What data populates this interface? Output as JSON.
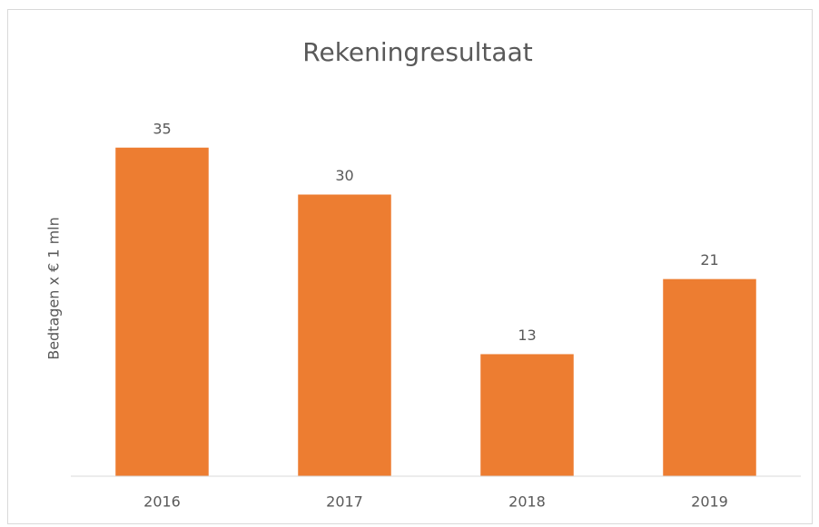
{
  "chart_data": {
    "type": "bar",
    "title": "Rekeningresultaat",
    "y_label": "Bedtagen x € 1 mln",
    "categories": [
      "2016",
      "2017",
      "2018",
      "2019"
    ],
    "values": [
      35,
      30,
      13,
      21
    ],
    "color": "#ed7d31",
    "ylim": [
      0,
      40
    ],
    "data_labels": true
  }
}
